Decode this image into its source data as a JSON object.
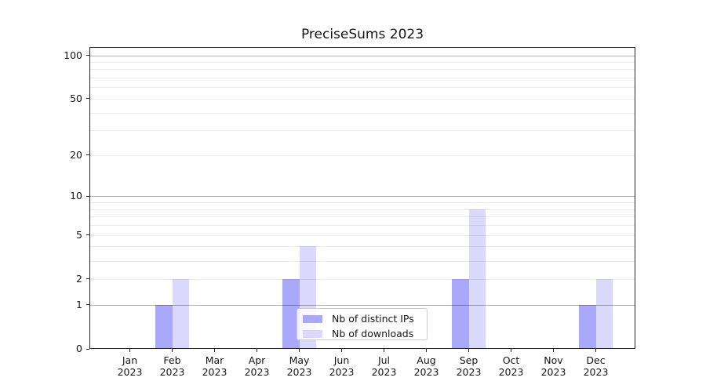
{
  "chart": {
    "title": "PreciseSums 2023"
  },
  "chart_data": {
    "type": "bar",
    "title": "PreciseSums 2023",
    "categories": [
      "Jan",
      "Feb",
      "Mar",
      "Apr",
      "May",
      "Jun",
      "Jul",
      "Aug",
      "Sep",
      "Oct",
      "Nov",
      "Dec"
    ],
    "category_year": "2023",
    "series": [
      {
        "name": "Nb of distinct IPs",
        "color": "#aaa8fa",
        "values": [
          0,
          1,
          0,
          0,
          2,
          0,
          0,
          0,
          2,
          0,
          0,
          1
        ]
      },
      {
        "name": "Nb of downloads",
        "color": "#dad9fb",
        "values": [
          0,
          2,
          0,
          0,
          4,
          0,
          0,
          0,
          8,
          0,
          0,
          2
        ]
      }
    ],
    "xlabel": "",
    "ylabel": "",
    "yscale": "log1p",
    "ylim": [
      0,
      114
    ],
    "yticks": [
      0,
      1,
      2,
      5,
      10,
      20,
      50,
      100
    ],
    "gridlines_major": [
      1,
      10,
      100
    ],
    "gridlines_minor": [
      2,
      3,
      4,
      5,
      6,
      7,
      8,
      9,
      20,
      30,
      40,
      50,
      60,
      70,
      80,
      90
    ],
    "grid": true,
    "legend_position": "lower center"
  },
  "colors": {
    "bar_distinct_ips": "#aaa8fa",
    "bar_downloads": "#dad9fb",
    "grid_major": "rgba(0,0,0,0.30)",
    "grid_minor": "rgba(0,0,0,0.08)",
    "spine": "#262626",
    "text": "#151515",
    "legend_border": "#cccccc",
    "legend_background": "rgba(255,255,255,0.8)",
    "background": "#ffffff"
  }
}
